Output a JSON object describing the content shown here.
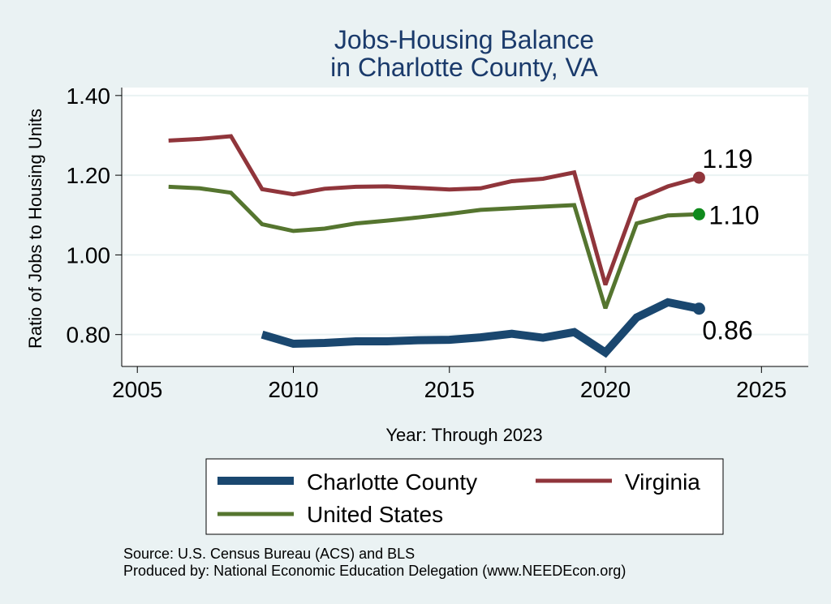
{
  "chart_data": {
    "type": "line",
    "title": "Jobs-Housing Balance",
    "subtitle": "in Charlotte County, VA",
    "xlabel": "Year: Through 2023",
    "ylabel": "Ratio of Jobs to Housing Units",
    "xlim": [
      2004.5,
      2026.5
    ],
    "ylim": [
      0.72,
      1.42
    ],
    "x_ticks": [
      2005,
      2010,
      2015,
      2020,
      2025
    ],
    "y_ticks": [
      0.8,
      1.0,
      1.2,
      1.4
    ],
    "y_tick_labels": [
      "0.80",
      "1.00",
      "1.20",
      "1.40"
    ],
    "x_tick_labels": [
      "2005",
      "2010",
      "2015",
      "2020",
      "2025"
    ],
    "grid": true,
    "legend_position": "bottom",
    "series": [
      {
        "name": "Charlotte County",
        "color": "#1a476f",
        "x": [
          2009,
          2010,
          2011,
          2012,
          2013,
          2014,
          2015,
          2016,
          2017,
          2018,
          2019,
          2020,
          2021,
          2022,
          2023
        ],
        "values": [
          0.8,
          0.777,
          0.779,
          0.783,
          0.783,
          0.786,
          0.787,
          0.793,
          0.802,
          0.792,
          0.806,
          0.755,
          0.843,
          0.881,
          0.865
        ],
        "end_label": "0.86"
      },
      {
        "name": "Virginia",
        "color": "#90353b",
        "x": [
          2006,
          2007,
          2008,
          2009,
          2010,
          2011,
          2012,
          2013,
          2014,
          2015,
          2016,
          2017,
          2018,
          2019,
          2020,
          2021,
          2022,
          2023
        ],
        "values": [
          1.287,
          1.291,
          1.298,
          1.165,
          1.152,
          1.166,
          1.171,
          1.172,
          1.168,
          1.164,
          1.167,
          1.185,
          1.191,
          1.207,
          0.925,
          1.139,
          1.172,
          1.194
        ],
        "end_label": "1.19"
      },
      {
        "name": "United States",
        "color": "#55752f",
        "x": [
          2006,
          2007,
          2008,
          2009,
          2010,
          2011,
          2012,
          2013,
          2014,
          2015,
          2016,
          2017,
          2018,
          2019,
          2020,
          2021,
          2022,
          2023
        ],
        "values": [
          1.171,
          1.167,
          1.156,
          1.077,
          1.06,
          1.066,
          1.079,
          1.086,
          1.094,
          1.103,
          1.113,
          1.117,
          1.121,
          1.125,
          0.866,
          1.079,
          1.099,
          1.102
        ],
        "end_label": "1.10"
      }
    ],
    "end_marker_color_us": "#0f8a1c"
  },
  "footer": {
    "source": "Source: U.S. Census Bureau (ACS) and BLS",
    "produced_by": "Produced by: National Economic Education Delegation (www.NEEDEcon.org)"
  }
}
